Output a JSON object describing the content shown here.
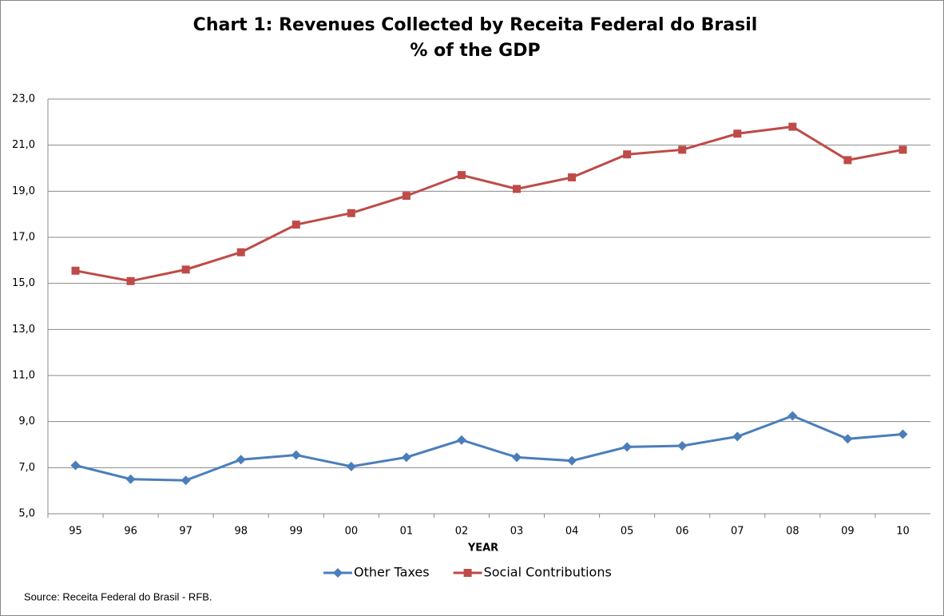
{
  "chart_data": {
    "type": "line",
    "title": "Chart 1: Revenues Collected by Receita Federal do Brasil",
    "subtitle": "% of the GDP",
    "x_label": "YEAR",
    "source": "Source: Receita Federal do Brasil - RFB.",
    "categories": [
      "95",
      "96",
      "97",
      "98",
      "99",
      "00",
      "01",
      "02",
      "03",
      "04",
      "05",
      "06",
      "07",
      "08",
      "09",
      "10"
    ],
    "series": [
      {
        "name": "Other Taxes",
        "color": "#4a7ebb",
        "marker": "diamond",
        "values": [
          7.1,
          6.5,
          6.45,
          7.35,
          7.55,
          7.05,
          7.45,
          8.2,
          7.45,
          7.3,
          7.9,
          7.95,
          8.35,
          9.25,
          8.25,
          8.45
        ]
      },
      {
        "name": "Social Contributions",
        "color": "#be4b48",
        "marker": "square",
        "values": [
          15.55,
          15.1,
          15.6,
          16.35,
          17.55,
          18.05,
          18.8,
          19.7,
          19.1,
          19.6,
          20.6,
          20.8,
          21.5,
          21.8,
          20.35,
          20.8
        ]
      }
    ],
    "ylim": [
      5,
      23
    ],
    "yticks": [
      {
        "value": 5,
        "label": "5,0"
      },
      {
        "value": 7,
        "label": "7,0"
      },
      {
        "value": 9,
        "label": "9,0"
      },
      {
        "value": 11,
        "label": "11,0"
      },
      {
        "value": 13,
        "label": "13,0"
      },
      {
        "value": 15,
        "label": "15,0"
      },
      {
        "value": 17,
        "label": "17,0"
      },
      {
        "value": 19,
        "label": "19,0"
      },
      {
        "value": 21,
        "label": "21,0"
      },
      {
        "value": 23,
        "label": "23,0"
      }
    ],
    "grid": true,
    "legend": "bottom"
  }
}
